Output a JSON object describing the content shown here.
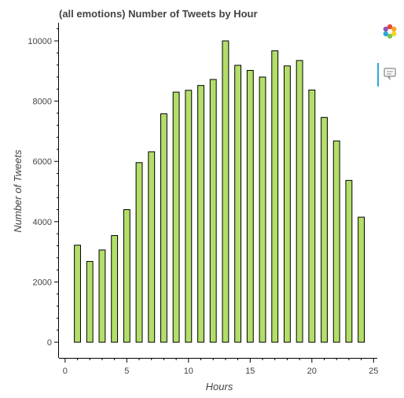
{
  "chart_data": {
    "type": "bar",
    "title": "(all emotions) Number of Tweets by Hour",
    "xlabel": "Hours",
    "ylabel": "Number of Tweets",
    "x": [
      1,
      2,
      3,
      4,
      5,
      6,
      7,
      8,
      9,
      10,
      11,
      12,
      13,
      14,
      15,
      16,
      17,
      18,
      19,
      20,
      21,
      22,
      23,
      24
    ],
    "values": [
      3220,
      2680,
      3060,
      3540,
      4400,
      5960,
      6320,
      7580,
      8300,
      8360,
      8520,
      8720,
      10000,
      9190,
      9020,
      8800,
      9670,
      9170,
      9350,
      8370,
      7460,
      6680,
      5370,
      4150
    ],
    "xlim": [
      -0.5,
      25.3
    ],
    "ylim": [
      -520,
      10600
    ],
    "xticks": [
      0,
      5,
      10,
      15,
      20,
      25
    ],
    "yticks": [
      0,
      2000,
      4000,
      6000,
      8000,
      10000
    ],
    "bar_width": 0.5,
    "bar_color": "#b3de69",
    "grid": false,
    "legend": "none"
  },
  "toolbar": {
    "logo_icon": "bokeh-logo-icon",
    "hover_icon": "hover-tool-icon"
  }
}
